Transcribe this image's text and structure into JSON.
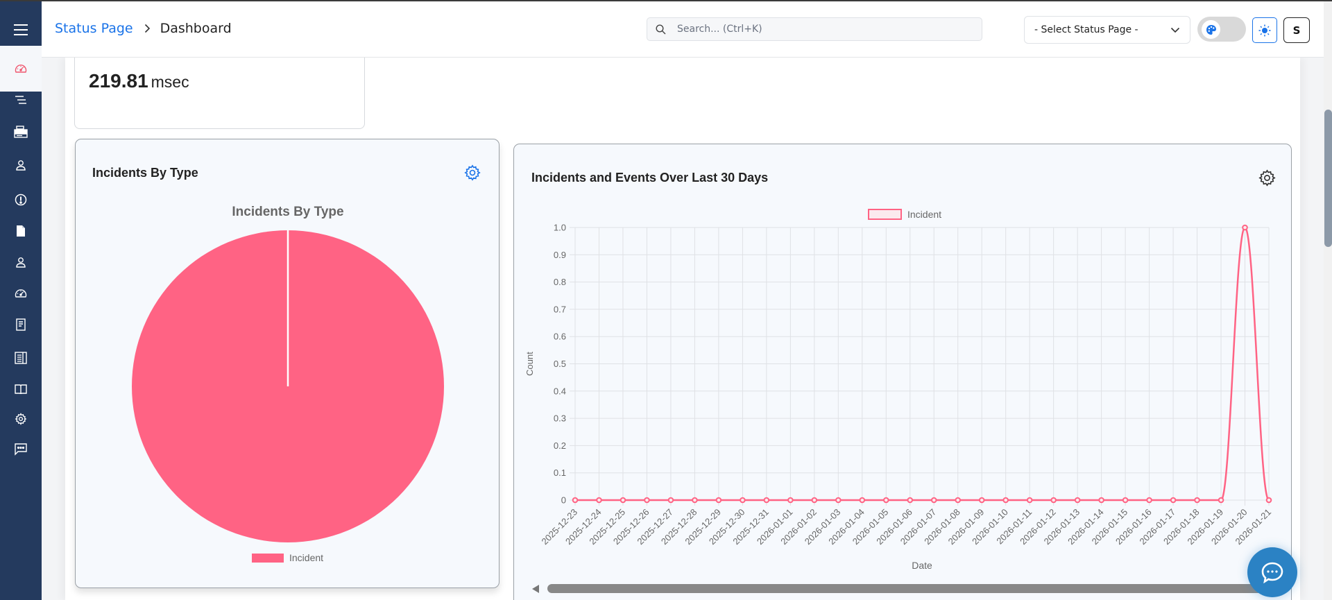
{
  "header": {
    "breadcrumb": [
      {
        "label": "Status Page",
        "link": true
      },
      {
        "label": "Dashboard",
        "link": false
      }
    ],
    "search": {
      "placeholder": "Search... (Ctrl+K)",
      "value": ""
    },
    "status_page_select": {
      "selected": "- Select Status Page -"
    },
    "theme_toggle": {
      "icon": "palette-icon"
    },
    "light_mode_button": {
      "icon": "sun-icon"
    },
    "avatar": {
      "initial": "S"
    }
  },
  "sidebar": {
    "menu_icon": "hamburger-icon",
    "items": [
      {
        "id": "dashboard",
        "icon": "speedometer-icon",
        "active": true
      },
      {
        "id": "menu-list",
        "icon": "list-icon",
        "active": false
      },
      {
        "id": "servers",
        "icon": "server-icon",
        "active": false
      },
      {
        "id": "users",
        "icon": "user-icon",
        "active": false
      },
      {
        "id": "incidents",
        "icon": "alert-icon",
        "active": false
      },
      {
        "id": "documents",
        "icon": "file-icon",
        "active": false
      },
      {
        "id": "subscribers",
        "icon": "user-icon",
        "active": false
      },
      {
        "id": "monitors",
        "icon": "speedometer-icon",
        "active": false
      },
      {
        "id": "reports",
        "icon": "document-icon",
        "active": false
      },
      {
        "id": "logs",
        "icon": "journal-icon",
        "active": false
      },
      {
        "id": "knowledge-base",
        "icon": "book-icon",
        "active": false
      },
      {
        "id": "settings",
        "icon": "gear-icon",
        "active": false
      },
      {
        "id": "messages",
        "icon": "chat-icon",
        "active": false
      }
    ]
  },
  "stat_card": {
    "value": "219.81",
    "unit": "msec"
  },
  "pie_card": {
    "title": "Incidents By Type",
    "chart_title": "Incidents By Type",
    "legend": [
      {
        "label": "Incident",
        "color": "#ff6384"
      }
    ]
  },
  "line_card": {
    "title": "Incidents and Events Over Last 30 Days",
    "legend": [
      {
        "label": "Incident",
        "color": "#ff6384"
      }
    ],
    "xlabel": "Date",
    "ylabel": "Count"
  },
  "colors": {
    "sidebar": "#243a5e",
    "accent": "#1a73e8",
    "series": "#ff6384",
    "card_bg": "#f6f9fd"
  },
  "chart_data": [
    {
      "type": "pie",
      "title": "Incidents By Type",
      "categories": [
        "Incident"
      ],
      "values": [
        100
      ],
      "colors": [
        "#ff6384"
      ],
      "legend_position": "bottom"
    },
    {
      "type": "line",
      "title": "Incidents and Events Over Last 30 Days",
      "xlabel": "Date",
      "ylabel": "Count",
      "ylim": [
        0,
        1.0
      ],
      "yticks": [
        "0",
        "0.1",
        "0.2",
        "0.3",
        "0.4",
        "0.5",
        "0.6",
        "0.7",
        "0.8",
        "0.9",
        "1.0"
      ],
      "grid": true,
      "legend_position": "top",
      "categories": [
        "2025-12-23",
        "2025-12-24",
        "2025-12-25",
        "2025-12-26",
        "2025-12-27",
        "2025-12-28",
        "2025-12-29",
        "2025-12-30",
        "2025-12-31",
        "2026-01-01",
        "2026-01-02",
        "2026-01-03",
        "2026-01-04",
        "2026-01-05",
        "2026-01-06",
        "2026-01-07",
        "2026-01-08",
        "2026-01-09",
        "2026-01-10",
        "2026-01-11",
        "2026-01-12",
        "2026-01-13",
        "2026-01-14",
        "2026-01-15",
        "2026-01-16",
        "2026-01-17",
        "2026-01-18",
        "2026-01-19",
        "2026-01-20",
        "2026-01-21"
      ],
      "series": [
        {
          "name": "Incident",
          "color": "#ff6384",
          "values": [
            0,
            0,
            0,
            0,
            0,
            0,
            0,
            0,
            0,
            0,
            0,
            0,
            0,
            0,
            0,
            0,
            0,
            0,
            0,
            0,
            0,
            0,
            0,
            0,
            0,
            0,
            0,
            0,
            1,
            0
          ]
        }
      ]
    }
  ]
}
